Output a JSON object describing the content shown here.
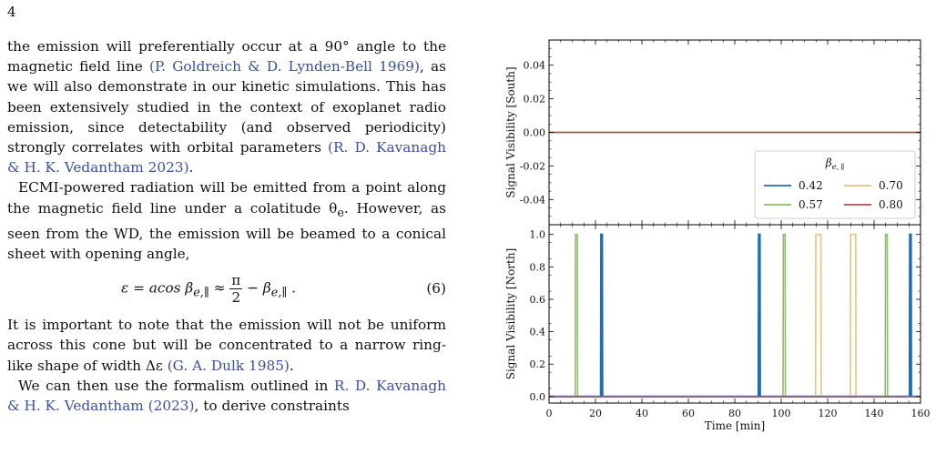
{
  "page_number": "4",
  "paragraphs": [
    {
      "segments": [
        {
          "t": "the emission will preferentially occur at a 90° angle to the magnetic field line ",
          "c": false
        },
        {
          "t": "(P. Goldreich & D. Lynden-Bell 1969)",
          "c": true
        },
        {
          "t": ", as we will also demonstrate in our kinetic simulations. This has been extensively studied in the context of exoplanet radio emission, since detectability (and observed periodicity) strongly correlates with orbital parameters ",
          "c": false
        },
        {
          "t": "(R. D. Kavanagh & H. K. Vedantham 2023)",
          "c": true
        },
        {
          "t": ".",
          "c": false
        }
      ]
    },
    {
      "indent": true,
      "segments": [
        {
          "t": "ECMI-powered radiation will be emitted from a point along the magnetic field line under a colatitude θ",
          "c": false
        },
        {
          "t": "e",
          "sub": true
        },
        {
          "t": ". However, as seen from the WD, the emission will be beamed to a conical sheet with opening angle,",
          "c": false
        }
      ]
    },
    {
      "segments": [
        {
          "t": "It is important to note that the emission will not be uniform across this cone but will be concentrated to a narrow ring-like shape of width Δε ",
          "c": false
        },
        {
          "t": "(G. A. Dulk 1985)",
          "c": true
        },
        {
          "t": ".",
          "c": false
        }
      ]
    },
    {
      "indent": true,
      "segments": [
        {
          "t": "We can then use the formalism outlined in ",
          "c": false
        },
        {
          "t": "R. D. Kavanagh & H. K. Vedantham (2023)",
          "c": true
        },
        {
          "t": ", to derive constraints",
          "c": false
        }
      ]
    }
  ],
  "equation": {
    "lhs": "ε = acos β",
    "lhs_sub": "e,∥",
    "approx": " ≈ ",
    "numerator": "π",
    "denominator": "2",
    "tail": " − β",
    "tail_sub": "e,∥",
    "end": " .",
    "number": "(6)"
  },
  "colors": {
    "s042": "#1f6fb0",
    "s057": "#8fbc6a",
    "s070": "#e8c37a",
    "s080": "#b84a5a",
    "link": "#3a4fa0"
  },
  "chart_data": [
    {
      "type": "line",
      "panel": "top",
      "ylabel": "Signal Visibility [South]",
      "xlim": [
        0,
        160
      ],
      "ylim": [
        -0.055,
        0.055
      ],
      "yticks": [
        -0.04,
        -0.02,
        0.0,
        0.02,
        0.04
      ],
      "ytick_labels": [
        "-0.04",
        "-0.02",
        "0.00",
        "0.02",
        "0.04"
      ],
      "legend": {
        "title": "β",
        "title_sub": "e, ∥",
        "placement": "lower-right",
        "entries": [
          "0.42",
          "0.70",
          "0.57",
          "0.80"
        ]
      },
      "series": [
        {
          "name": "0.42",
          "x": [
            0,
            160
          ],
          "y": [
            0,
            0
          ]
        },
        {
          "name": "0.57",
          "x": [
            0,
            160
          ],
          "y": [
            0,
            0
          ]
        },
        {
          "name": "0.70",
          "x": [
            0,
            160
          ],
          "y": [
            0,
            0
          ]
        },
        {
          "name": "0.80",
          "x": [
            0,
            160
          ],
          "y": [
            0,
            0
          ]
        }
      ]
    },
    {
      "type": "line",
      "panel": "bottom",
      "ylabel": "Signal Visibility [North]",
      "xlabel": "Time [min]",
      "xlim": [
        0,
        160
      ],
      "ylim": [
        -0.04,
        1.06
      ],
      "xticks": [
        0,
        20,
        40,
        60,
        80,
        100,
        120,
        140,
        160
      ],
      "xtick_labels": [
        "0",
        "20",
        "40",
        "60",
        "80",
        "100",
        "120",
        "140",
        "160"
      ],
      "yticks": [
        0.0,
        0.2,
        0.4,
        0.6,
        0.8,
        1.0
      ],
      "ytick_labels": [
        "0.0",
        "0.2",
        "0.4",
        "0.6",
        "0.8",
        "1.0"
      ],
      "series": [
        {
          "name": "0.42",
          "pulses": [
            [
              22.3,
              23.0
            ],
            [
              90.2,
              90.9
            ],
            [
              155.3,
              156.0
            ]
          ]
        },
        {
          "name": "0.57",
          "pulses": [
            [
              11.3,
              12.3
            ],
            [
              100.8,
              101.8
            ],
            [
              144.8,
              145.8
            ]
          ]
        },
        {
          "name": "0.70",
          "pulses": [
            [
              114.8,
              117.2
            ],
            [
              129.8,
              132.2
            ]
          ]
        },
        {
          "name": "0.80",
          "pulses": []
        }
      ]
    }
  ]
}
